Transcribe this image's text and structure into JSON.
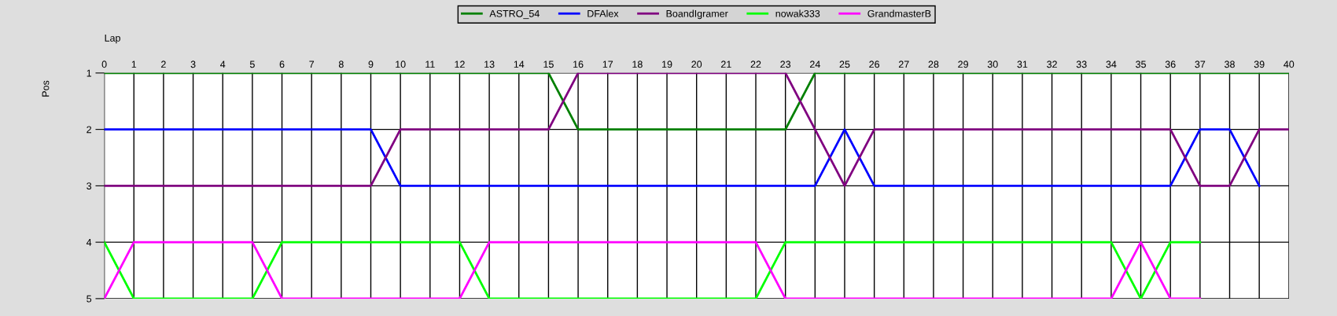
{
  "chart_data": {
    "type": "line",
    "xlabel": "Lap",
    "ylabel": "Pos",
    "x": [
      0,
      1,
      2,
      3,
      4,
      5,
      6,
      7,
      8,
      9,
      10,
      11,
      12,
      13,
      14,
      15,
      16,
      17,
      18,
      19,
      20,
      21,
      22,
      23,
      24,
      25,
      26,
      27,
      28,
      29,
      30,
      31,
      32,
      33,
      34,
      35,
      36,
      37,
      38,
      39,
      40
    ],
    "series": [
      {
        "name": "ASTRO_54",
        "color": "#008000",
        "values": [
          1,
          1,
          1,
          1,
          1,
          1,
          1,
          1,
          1,
          1,
          1,
          1,
          1,
          1,
          1,
          1,
          2,
          2,
          2,
          2,
          2,
          2,
          2,
          2,
          1,
          1,
          1,
          1,
          1,
          1,
          1,
          1,
          1,
          1,
          1,
          1,
          1,
          1,
          1,
          1,
          1
        ]
      },
      {
        "name": "DFAlex",
        "color": "#0000ff",
        "values": [
          2,
          2,
          2,
          2,
          2,
          2,
          2,
          2,
          2,
          2,
          3,
          3,
          3,
          3,
          3,
          3,
          3,
          3,
          3,
          3,
          3,
          3,
          3,
          3,
          3,
          2,
          3,
          3,
          3,
          3,
          3,
          3,
          3,
          3,
          3,
          3,
          3,
          2,
          2,
          3,
          null
        ]
      },
      {
        "name": "BoandIgramer",
        "color": "#800080",
        "values": [
          3,
          3,
          3,
          3,
          3,
          3,
          3,
          3,
          3,
          3,
          2,
          2,
          2,
          2,
          2,
          2,
          1,
          1,
          1,
          1,
          1,
          1,
          1,
          1,
          2,
          3,
          2,
          2,
          2,
          2,
          2,
          2,
          2,
          2,
          2,
          2,
          2,
          3,
          3,
          2,
          2
        ]
      },
      {
        "name": "nowak333",
        "color": "#00ff00",
        "values": [
          4,
          5,
          5,
          5,
          5,
          5,
          4,
          4,
          4,
          4,
          4,
          4,
          4,
          5,
          5,
          5,
          5,
          5,
          5,
          5,
          5,
          5,
          5,
          4,
          4,
          4,
          4,
          4,
          4,
          4,
          4,
          4,
          4,
          4,
          4,
          5,
          4,
          4,
          null,
          null,
          null
        ]
      },
      {
        "name": "GrandmasterB",
        "color": "#ff00ff",
        "values": [
          5,
          4,
          4,
          4,
          4,
          4,
          5,
          5,
          5,
          5,
          5,
          5,
          5,
          4,
          4,
          4,
          4,
          4,
          4,
          4,
          4,
          4,
          4,
          5,
          5,
          5,
          5,
          5,
          5,
          5,
          5,
          5,
          5,
          5,
          5,
          4,
          5,
          5,
          null,
          null,
          null
        ]
      }
    ],
    "xlim": [
      0,
      40
    ],
    "xticks": [
      0,
      1,
      2,
      3,
      4,
      5,
      6,
      7,
      8,
      9,
      10,
      11,
      12,
      13,
      14,
      15,
      16,
      17,
      18,
      19,
      20,
      21,
      22,
      23,
      24,
      25,
      26,
      27,
      28,
      29,
      30,
      31,
      32,
      33,
      34,
      35,
      36,
      37,
      38,
      39,
      40
    ],
    "ylim": [
      5,
      1
    ],
    "yticks": [
      1,
      2,
      3,
      4,
      5
    ],
    "grid": true,
    "legend": "top",
    "marker": "none",
    "line_style": "solid"
  }
}
